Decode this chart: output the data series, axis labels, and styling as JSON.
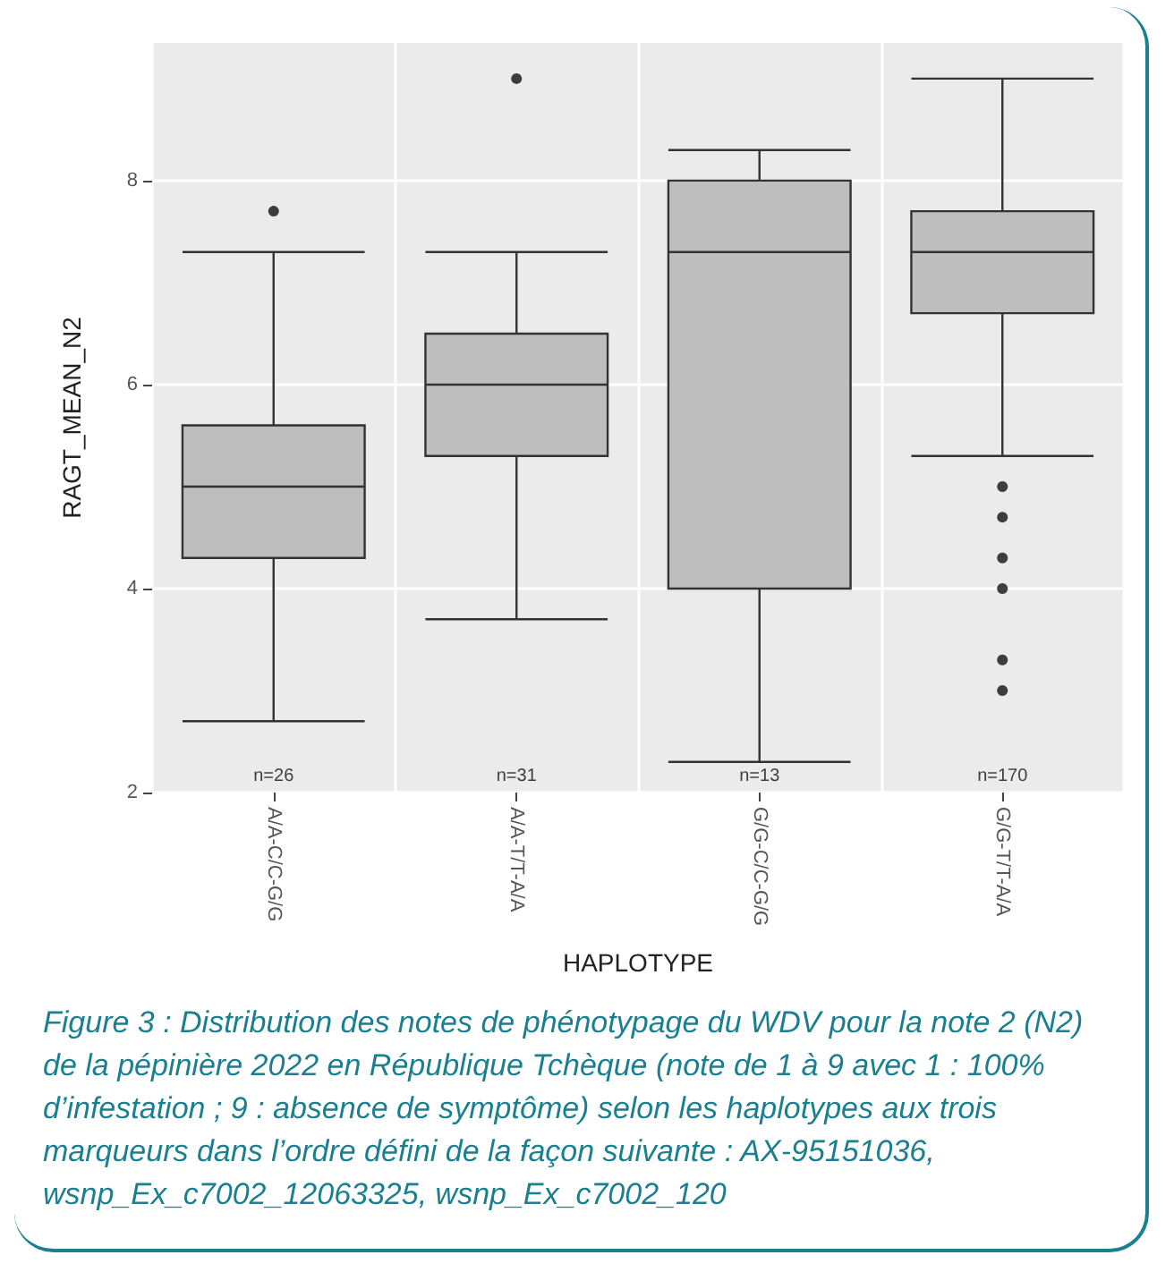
{
  "chart_data": {
    "type": "box",
    "xlabel": "HAPLOTYPE",
    "ylabel": "RAGT_MEAN_N2",
    "categories": [
      "A/A-C/C-G/G",
      "A/A-T/T-A/A",
      "G/G-C/C-G/G",
      "G/G-T/T-A/A"
    ],
    "boxes": [
      {
        "low": 2.7,
        "q1": 4.3,
        "median": 5.0,
        "q3": 5.6,
        "high": 7.3,
        "outliers": [
          7.7
        ]
      },
      {
        "low": 3.7,
        "q1": 5.3,
        "median": 6.0,
        "q3": 6.5,
        "high": 7.3,
        "outliers": [
          9.0
        ]
      },
      {
        "low": 2.3,
        "q1": 4.0,
        "median": 7.3,
        "q3": 8.0,
        "high": 8.3
      },
      {
        "low": 5.3,
        "q1": 6.7,
        "median": 7.3,
        "q3": 7.7,
        "high": 9.0,
        "outliers": [
          5.0,
          4.7,
          4.3,
          4.0,
          3.3,
          3.0
        ]
      }
    ],
    "color": "#bebebe",
    "ylim": [
      2,
      9.35
    ],
    "yticks": [
      2,
      4,
      6,
      8
    ],
    "grid": true,
    "annotations": [
      "n=26",
      "n=31",
      "n=13",
      "n=170",
      "Figure 3 : Distribution des notes de phénotypage du WDV pour la note 2 (N2) de la pépinière 2022 en République Tchèque (note de 1 à 9 avec 1 : 100% d’infestation ; 9 : absence de symptôme) selon les haplotypes aux trois marqueurs dans l’ordre défini de la façon suivante : AX-95151036, wsnp_Ex_c7002_12063325, wsnp_Ex_c7002_120"
    ]
  }
}
